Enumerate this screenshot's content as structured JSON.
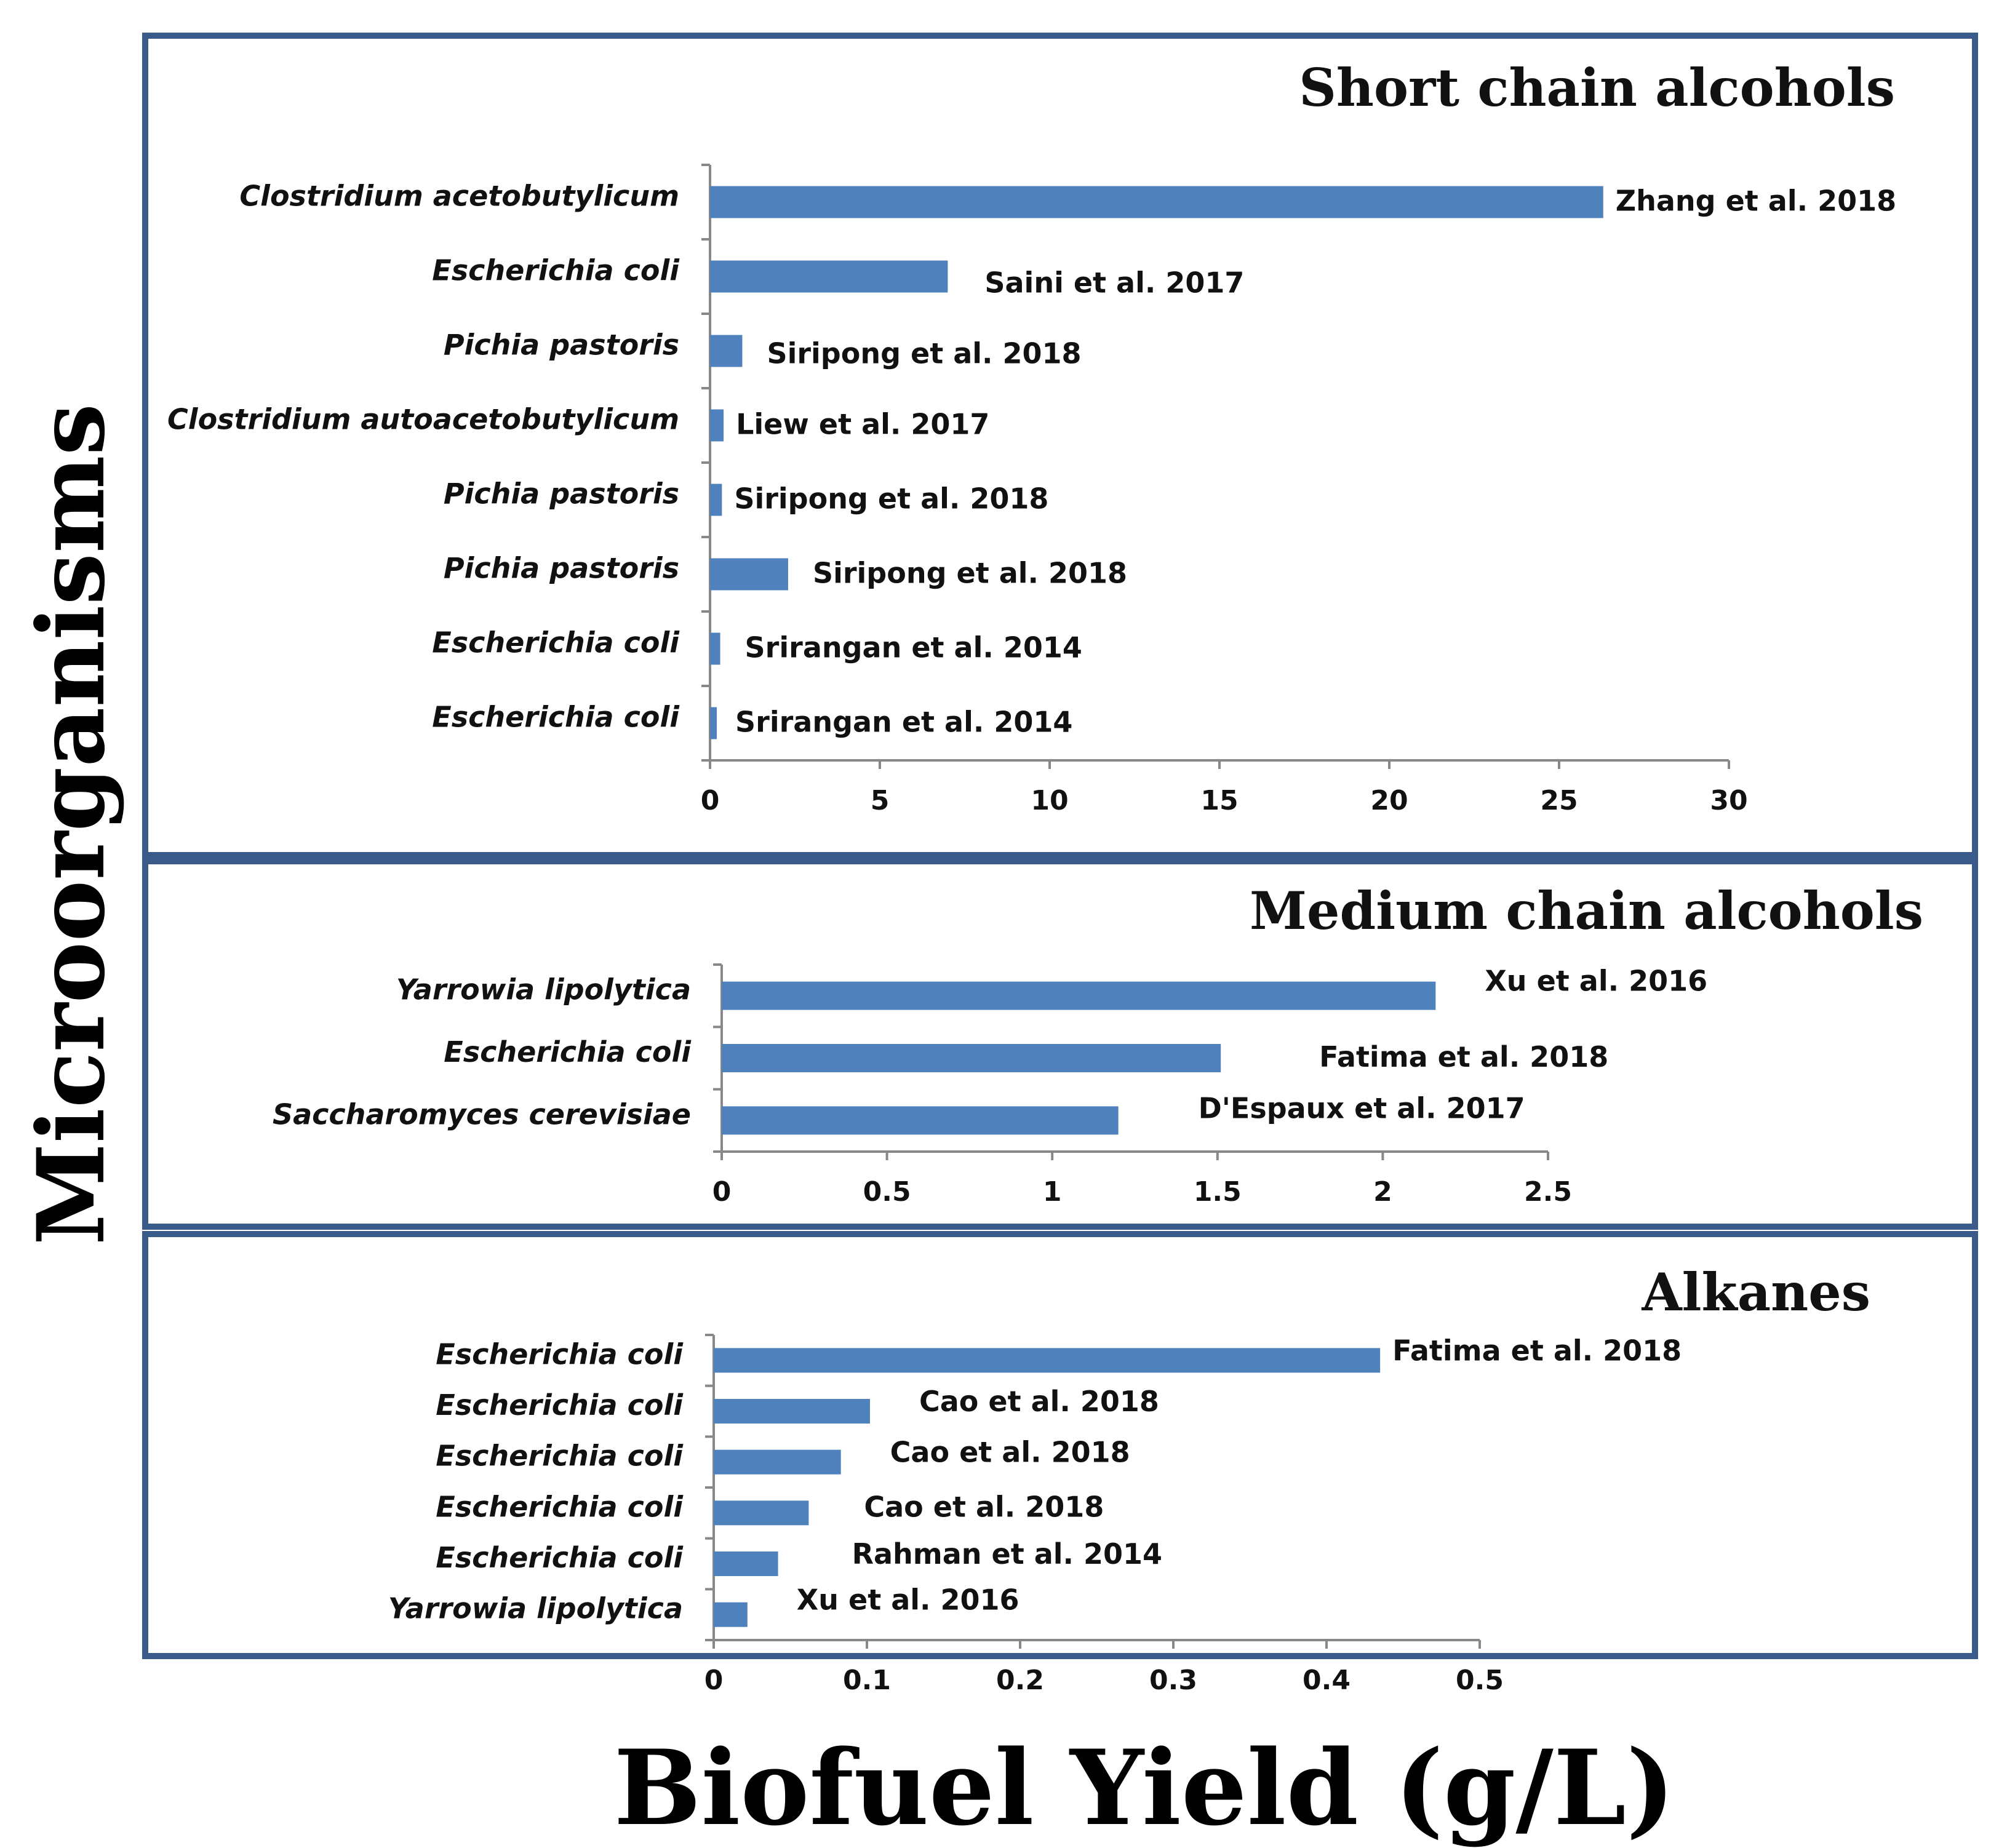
{
  "figure": {
    "y_axis_title": "Microorganisms",
    "x_axis_title": "Biofuel Yield (g/L)",
    "colors": {
      "bar": "#4f81bd",
      "frame": "#3a5a8a",
      "axis": "#888888"
    }
  },
  "chart_data": [
    {
      "type": "bar",
      "orientation": "horizontal",
      "title": "Short chain alcohols",
      "xlim": [
        0,
        30
      ],
      "ticks": [
        0,
        5,
        10,
        15,
        20,
        25,
        30
      ],
      "categories": [
        "Clostridium acetobutylicum",
        "Escherichia coli",
        "Pichia pastoris",
        "Clostridium autoacetobutylicum",
        "Pichia pastoris",
        "Pichia pastoris",
        "Escherichia coli",
        "Escherichia coli"
      ],
      "values": [
        26.3,
        7.0,
        0.95,
        0.4,
        0.35,
        2.3,
        0.3,
        0.2
      ],
      "annotations": [
        "Zhang et al. 2018",
        "Saini et al. 2017",
        "Siripong et al. 2018",
        "Liew et al. 2017",
        "Siripong et al. 2018",
        "Siripong et al. 2018",
        "Srirangan et al. 2014",
        "Srirangan et al. 2014"
      ]
    },
    {
      "type": "bar",
      "orientation": "horizontal",
      "title": "Medium chain alcohols",
      "xlim": [
        0,
        2.5
      ],
      "ticks": [
        "0",
        "0.5",
        "1",
        "1.5",
        "2",
        "2.5"
      ],
      "categories": [
        "Yarrowia lipolytica",
        "Escherichia coli",
        "Saccharomyces cerevisiae"
      ],
      "values": [
        2.16,
        1.51,
        1.2
      ],
      "annotations": [
        "Xu et al. 2016",
        "Fatima et al. 2018",
        "D'Espaux et al. 2017"
      ]
    },
    {
      "type": "bar",
      "orientation": "horizontal",
      "title": "Alkanes",
      "xlim": [
        0,
        0.5
      ],
      "ticks": [
        "0",
        "0.1",
        "0.2",
        "0.3",
        "0.4",
        "0.5"
      ],
      "categories": [
        "Escherichia coli",
        "Escherichia coli",
        "Escherichia coli",
        "Escherichia coli",
        "Escherichia coli",
        "Yarrowia lipolytica"
      ],
      "values": [
        0.435,
        0.102,
        0.083,
        0.062,
        0.042,
        0.022
      ],
      "annotations": [
        "Fatima et al. 2018",
        "Cao et al. 2018",
        "Cao et al. 2018",
        "Cao et al. 2018",
        "Rahman et al. 2014",
        "Xu et al. 2016"
      ]
    }
  ]
}
